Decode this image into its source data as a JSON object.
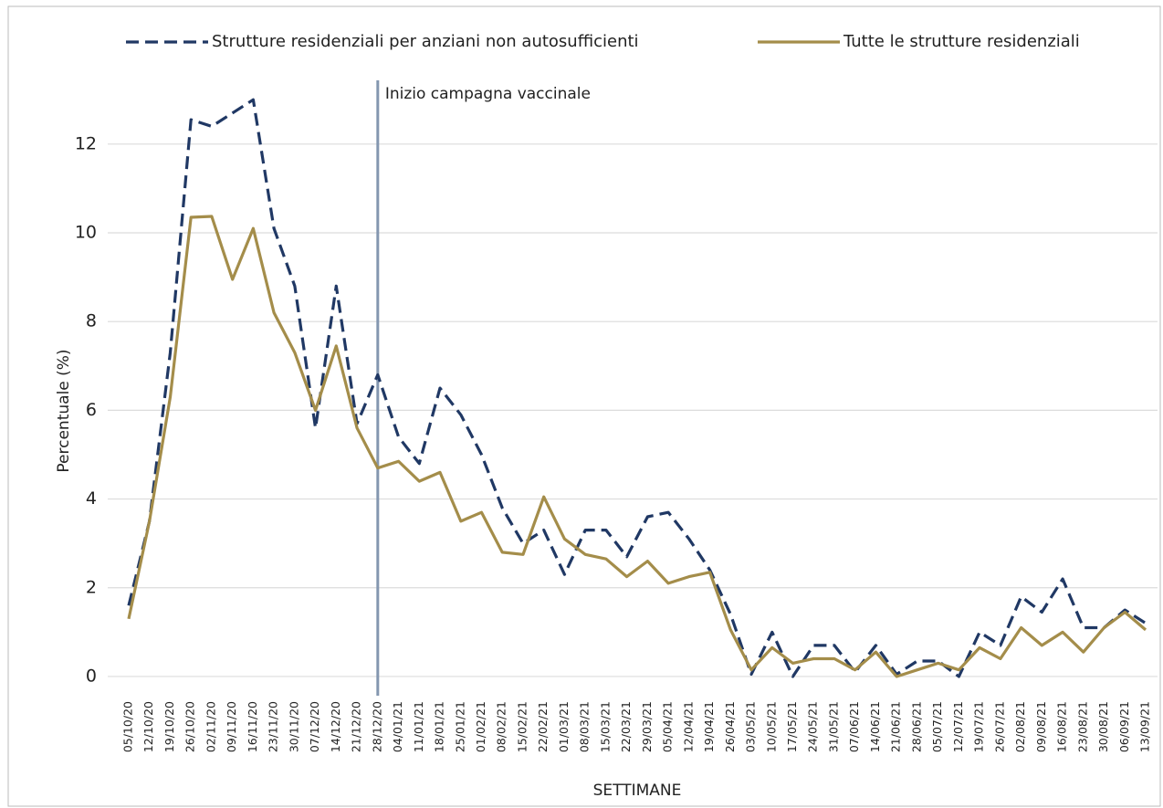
{
  "chart_data": {
    "type": "line",
    "y_label": "Percentuale (%)",
    "x_label": "SETTIMANE",
    "categories": [
      "05/10/20",
      "12/10/20",
      "19/10/20",
      "26/10/20",
      "02/11/20",
      "09/11/20",
      "16/11/20",
      "23/11/20",
      "30/11/20",
      "07/12/20",
      "14/12/20",
      "21/12/20",
      "28/12/20",
      "04/01/21",
      "11/01/21",
      "18/01/21",
      "25/01/21",
      "01/02/21",
      "08/02/21",
      "15/02/21",
      "22/02/21",
      "01/03/21",
      "08/03/21",
      "15/03/21",
      "22/03/21",
      "29/03/21",
      "05/04/21",
      "12/04/21",
      "19/04/21",
      "26/04/21",
      "03/05/21",
      "10/05/21",
      "17/05/21",
      "24/05/21",
      "31/05/21",
      "07/06/21",
      "14/06/21",
      "21/06/21",
      "28/06/21",
      "05/07/21",
      "12/07/21",
      "19/07/21",
      "26/07/21",
      "02/08/21",
      "09/08/21",
      "16/08/21",
      "23/08/21",
      "30/08/21",
      "06/09/21",
      "13/09/21"
    ],
    "series": [
      {
        "name": "Strutture residenziali per anziani non autosufficienti",
        "color": "#203864",
        "dash": true,
        "values": [
          1.6,
          3.5,
          7.3,
          12.55,
          12.4,
          12.7,
          13.0,
          10.1,
          8.8,
          5.6,
          8.8,
          5.7,
          6.8,
          5.4,
          4.8,
          6.5,
          5.9,
          5.0,
          3.8,
          3.0,
          3.3,
          2.3,
          3.3,
          3.3,
          2.7,
          3.6,
          3.7,
          3.1,
          2.4,
          1.4,
          0.05,
          1.0,
          0.0,
          0.7,
          0.7,
          0.1,
          0.7,
          0.05,
          0.35,
          0.35,
          0.0,
          1.0,
          0.7,
          1.8,
          1.45,
          2.2,
          1.1,
          1.1,
          1.5,
          1.2
        ]
      },
      {
        "name": "Tutte le strutture residenziali",
        "color": "#a48d4a",
        "dash": false,
        "values": [
          1.3,
          3.5,
          6.3,
          10.35,
          10.37,
          8.95,
          10.1,
          8.2,
          7.3,
          6.0,
          7.45,
          5.6,
          4.7,
          4.85,
          4.4,
          4.6,
          3.5,
          3.7,
          2.8,
          2.75,
          4.05,
          3.1,
          2.75,
          2.65,
          2.25,
          2.6,
          2.1,
          2.25,
          2.35,
          1.05,
          0.15,
          0.65,
          0.3,
          0.4,
          0.4,
          0.15,
          0.55,
          0.0,
          0.15,
          0.3,
          0.15,
          0.65,
          0.4,
          1.1,
          0.7,
          1.0,
          0.55,
          1.1,
          1.45,
          1.05
        ]
      }
    ],
    "annotation": {
      "text": "Inizio campagna vaccinale",
      "x": "28/12/20",
      "color": "#8497b0"
    },
    "ylim": [
      -0.4,
      13.4
    ],
    "yticks": [
      0,
      2,
      4,
      6,
      8,
      10,
      12
    ],
    "grid": true
  }
}
